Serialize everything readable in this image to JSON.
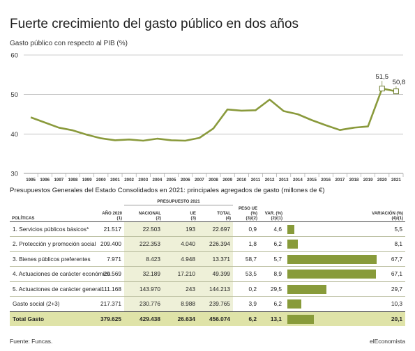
{
  "title": "Fuerte crecimiento del gasto público en dos años",
  "subtitle": "Gasto público con respecto al PIB (%)",
  "chart_data": {
    "type": "line",
    "x": [
      1995,
      1996,
      1997,
      1998,
      1999,
      2000,
      2001,
      2002,
      2003,
      2004,
      2005,
      2006,
      2007,
      2008,
      2009,
      2010,
      2011,
      2012,
      2013,
      2014,
      2015,
      2016,
      2017,
      2018,
      2019,
      2020,
      2021
    ],
    "series": [
      {
        "values": [
          44.2,
          42.9,
          41.6,
          40.9,
          39.8,
          38.9,
          38.4,
          38.6,
          38.3,
          38.8,
          38.4,
          38.3,
          39.0,
          41.4,
          46.2,
          45.9,
          46.0,
          48.7,
          45.8,
          45.0,
          43.5,
          42.2,
          41.0,
          41.6,
          41.9,
          51.5,
          50.8
        ]
      }
    ],
    "labels": [
      {
        "x": 2020,
        "text": "51,5"
      },
      {
        "x": 2021,
        "text": "50,8"
      }
    ],
    "ylim": [
      30,
      60
    ],
    "yticks": [
      30,
      40,
      50,
      60
    ],
    "grid": true,
    "line_color": "#8a9a3c"
  },
  "table": {
    "title": "Presupuestos Generales del Estado Consolidados en 2021: principales agregados de gasto (millones de €)",
    "headers": {
      "politicas": "POLÍTICAS",
      "anio2020": "AÑO 2020",
      "anio2020_n": "(1)",
      "presupuesto": "PRESUPUESTO 2021",
      "nacional": "NACIONAL",
      "nacional_n": "(2)",
      "ue": "UE",
      "ue_n": "(3)",
      "total": "TOTAL",
      "total_n": "(4)",
      "peso": "PESO UE (%)",
      "peso_n": "(3)/(2)",
      "var": "VAR. (%)",
      "var_n": "(2)/(1)",
      "variacion": "VARIACIÓN (%)",
      "variacion_n": "(4)/(1)"
    },
    "rows": [
      {
        "label": "1. Servicios públicos básicos*",
        "y2020": "21.517",
        "nacional": "22.503",
        "ue": "193",
        "total": "22.697",
        "peso": "0,9",
        "var": "4,6",
        "variacion": "5,5",
        "variacion_value": 5.5
      },
      {
        "label": "2. Protección y promoción social",
        "y2020": "209.400",
        "nacional": "222.353",
        "ue": "4.040",
        "total": "226.394",
        "peso": "1,8",
        "var": "6,2",
        "variacion": "8,1",
        "variacion_value": 8.1
      },
      {
        "label": "3. Bienes públicos preferentes",
        "y2020": "7.971",
        "nacional": "8.423",
        "ue": "4.948",
        "total": "13.371",
        "peso": "58,7",
        "var": "5,7",
        "variacion": "67,7",
        "variacion_value": 67.7
      },
      {
        "label": "4. Actuaciones de carácter económico",
        "y2020": "29.569",
        "nacional": "32.189",
        "ue": "17.210",
        "total": "49.399",
        "peso": "53,5",
        "var": "8,9",
        "variacion": "67,1",
        "variacion_value": 67.1
      },
      {
        "label": "5. Actuaciones de carácter general",
        "y2020": "111.168",
        "nacional": "143.970",
        "ue": "243",
        "total": "144.213",
        "peso": "0,2",
        "var": "29,5",
        "variacion": "29,7",
        "variacion_value": 29.7
      },
      {
        "label": "Gasto social (2+3)",
        "y2020": "217.371",
        "nacional": "230.776",
        "ue": "8.988",
        "total": "239.765",
        "peso": "3,9",
        "var": "6,2",
        "variacion": "10,3",
        "variacion_value": 10.3
      }
    ],
    "total_row": {
      "label": "Total Gasto",
      "y2020": "379.625",
      "nacional": "429.438",
      "ue": "26.634",
      "total": "456.074",
      "peso": "6,2",
      "var": "13,1",
      "variacion": "20,1",
      "variacion_value": 20.1
    },
    "bar_max": 67.7,
    "bar_color": "#889b3a"
  },
  "source": "Fuente: Funcas.",
  "brand": "elEconomista"
}
